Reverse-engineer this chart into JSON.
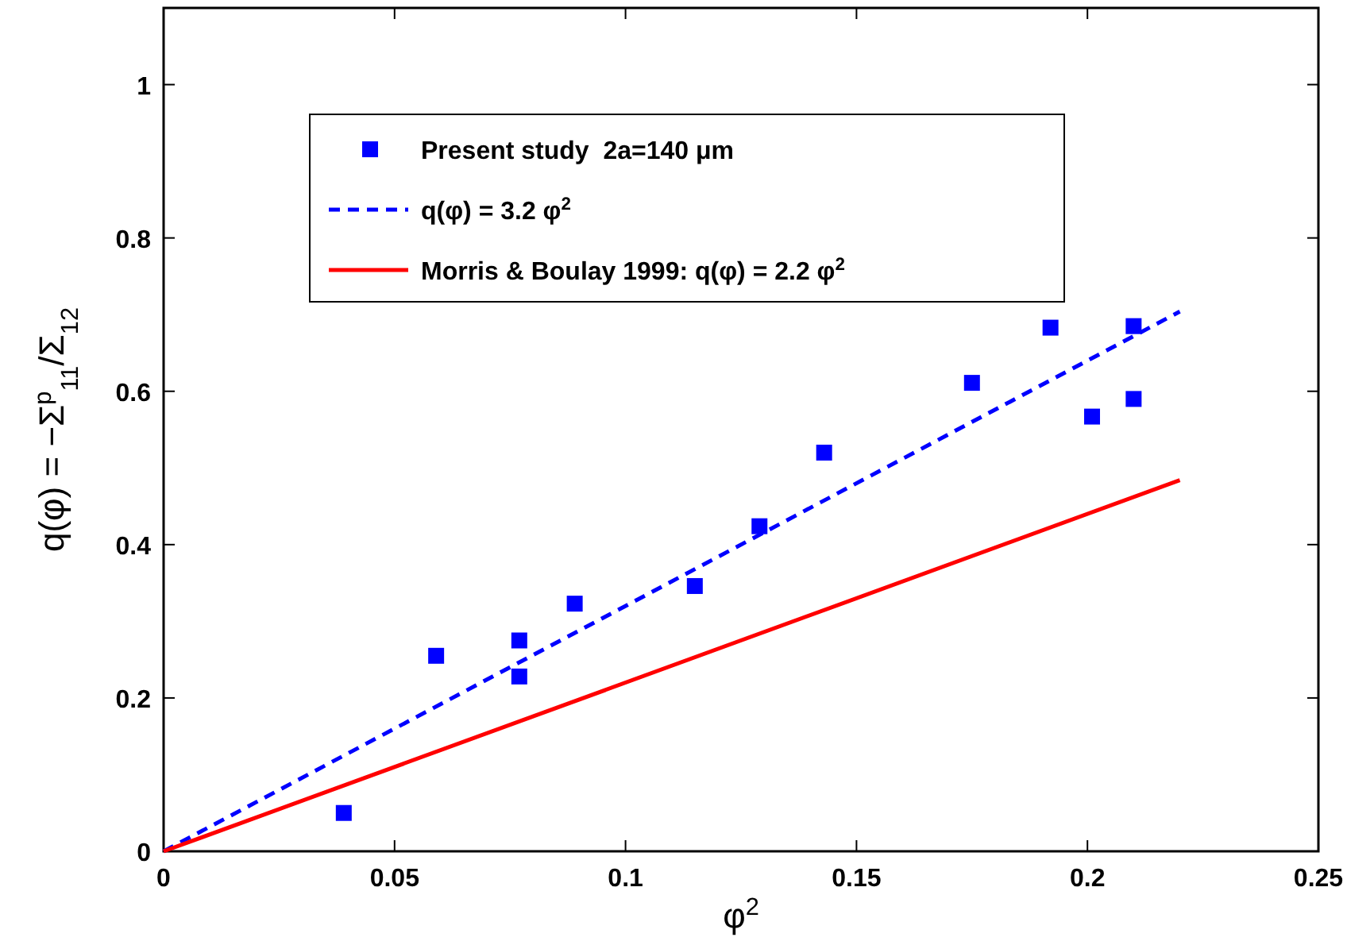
{
  "chart_data": {
    "type": "scatter",
    "xlabel": "φ$^{2}$",
    "ylabel": "q(φ) = −Σ$^{p}$$_{11}$/Σ$_{12}$",
    "xlim": [
      0,
      0.25
    ],
    "ylim": [
      0,
      1.1
    ],
    "xticks": [
      0,
      0.05,
      0.1,
      0.15,
      0.2,
      0.25
    ],
    "yticks": [
      0,
      0.2,
      0.4,
      0.6,
      0.8,
      1
    ],
    "grid": false,
    "legend": "top left",
    "series": [
      {
        "name": "Present study  2a=140 μm",
        "marker": "square",
        "color": "#0000ff",
        "x": [
          0.039,
          0.059,
          0.077,
          0.077,
          0.089,
          0.115,
          0.129,
          0.143,
          0.175,
          0.192,
          0.201,
          0.21,
          0.21
        ],
        "values": [
          0.05,
          0.255,
          0.275,
          0.228,
          0.323,
          0.346,
          0.424,
          0.52,
          0.611,
          0.683,
          0.567,
          0.685,
          0.59
        ]
      },
      {
        "name": "q(φ) = 3.2 φ$^{2}$",
        "type": "line",
        "marker": "none",
        "line_style": "dashed",
        "color": "#0000ff",
        "x": [
          0,
          0.22
        ],
        "values": [
          0,
          0.704
        ]
      },
      {
        "name": "Morris & Boulay 1999: q(φ) = 2.2 φ$^{2}$",
        "type": "line",
        "marker": "none",
        "line_style": "solid",
        "color": "#ff0000",
        "x": [
          0,
          0.22
        ],
        "values": [
          0,
          0.484
        ]
      }
    ]
  }
}
